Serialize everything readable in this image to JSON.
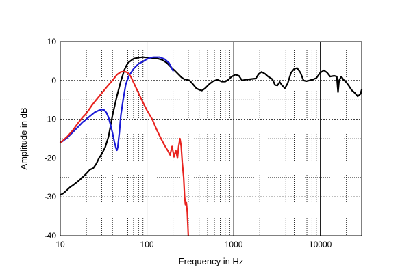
{
  "chart_data": {
    "type": "line",
    "title": "",
    "xlabel": "Frequency in Hz",
    "ylabel": "Amplitude in dB",
    "xscale": "log",
    "xlim": [
      10,
      30000
    ],
    "ylim": [
      -40,
      10
    ],
    "x_tick_labels": [
      "10",
      "100",
      "1000",
      "10000"
    ],
    "y_tick_labels": [
      "10",
      "0",
      "-10",
      "-20",
      "-30",
      "-40"
    ],
    "x_ticks": [
      10,
      100,
      1000,
      10000
    ],
    "y_ticks": [
      10,
      0,
      -10,
      -20,
      -30,
      -40
    ],
    "grid": true,
    "legend": "none",
    "series": [
      {
        "color": "#000000",
        "points": [
          [
            10,
            -29.5
          ],
          [
            11,
            -29
          ],
          [
            12,
            -28.2
          ],
          [
            13,
            -27.5
          ],
          [
            14,
            -27
          ],
          [
            16,
            -26
          ],
          [
            18,
            -25
          ],
          [
            20,
            -24
          ],
          [
            22,
            -23
          ],
          [
            24,
            -22.6
          ],
          [
            26,
            -21.5
          ],
          [
            28,
            -20
          ],
          [
            30,
            -19
          ],
          [
            33,
            -17.2
          ],
          [
            36,
            -14.5
          ],
          [
            40,
            -9
          ],
          [
            45,
            -4
          ],
          [
            50,
            -0.2
          ],
          [
            55,
            2.8
          ],
          [
            60,
            4.5
          ],
          [
            70,
            5.6
          ],
          [
            80,
            5.9
          ],
          [
            90,
            6
          ],
          [
            100,
            5.9
          ],
          [
            115,
            5.8
          ],
          [
            130,
            5.7
          ],
          [
            150,
            5.3
          ],
          [
            170,
            4.5
          ],
          [
            190,
            3.4
          ],
          [
            210,
            2.5
          ],
          [
            230,
            1.6
          ],
          [
            250,
            0.8
          ],
          [
            270,
            0.3
          ],
          [
            290,
            0.2
          ],
          [
            310,
            0
          ],
          [
            340,
            -1
          ],
          [
            370,
            -2
          ],
          [
            400,
            -2.4
          ],
          [
            430,
            -2.6
          ],
          [
            470,
            -2
          ],
          [
            520,
            -1
          ],
          [
            580,
            -0.2
          ],
          [
            650,
            0.2
          ],
          [
            730,
            -0.3
          ],
          [
            800,
            -0.3
          ],
          [
            870,
            0.2
          ],
          [
            950,
            1
          ],
          [
            1050,
            1.5
          ],
          [
            1150,
            1.2
          ],
          [
            1250,
            0
          ],
          [
            1380,
            0.2
          ],
          [
            1500,
            0.3
          ],
          [
            1650,
            0.4
          ],
          [
            1800,
            0.5
          ],
          [
            1950,
            1.7
          ],
          [
            2100,
            2.2
          ],
          [
            2300,
            1.7
          ],
          [
            2500,
            1
          ],
          [
            2800,
            0.3
          ],
          [
            3000,
            -1.2
          ],
          [
            3200,
            -1.3
          ],
          [
            3400,
            -0.4
          ],
          [
            3600,
            -1.2
          ],
          [
            3900,
            -2
          ],
          [
            4200,
            -0.8
          ],
          [
            4600,
            2
          ],
          [
            5000,
            3
          ],
          [
            5400,
            3.2
          ],
          [
            5900,
            2
          ],
          [
            6400,
            0
          ],
          [
            6900,
            -0.2
          ],
          [
            7500,
            0
          ],
          [
            8300,
            0.3
          ],
          [
            9000,
            0.6
          ],
          [
            10000,
            2
          ],
          [
            11000,
            2.6
          ],
          [
            12000,
            2
          ],
          [
            13000,
            1
          ],
          [
            14500,
            1.2
          ],
          [
            15500,
            1
          ],
          [
            16000,
            -3
          ],
          [
            16500,
            0
          ],
          [
            17500,
            1
          ],
          [
            18500,
            0.2
          ],
          [
            20000,
            -0.5
          ],
          [
            21500,
            -1.5
          ],
          [
            23000,
            -2.5
          ],
          [
            25000,
            -3.2
          ],
          [
            27000,
            -4.1
          ],
          [
            29000,
            -3.5
          ],
          [
            30000,
            -2.4
          ]
        ]
      },
      {
        "color": "#1a1ad6",
        "points": [
          [
            10,
            -16.1
          ],
          [
            12,
            -14.8
          ],
          [
            14,
            -13.3
          ],
          [
            16,
            -12
          ],
          [
            18,
            -10.8
          ],
          [
            20,
            -10
          ],
          [
            22,
            -9.2
          ],
          [
            25,
            -8.2
          ],
          [
            28,
            -7.7
          ],
          [
            30,
            -7.5
          ],
          [
            32,
            -7.6
          ],
          [
            34,
            -8.3
          ],
          [
            36,
            -9.5
          ],
          [
            38,
            -11.5
          ],
          [
            40,
            -13.5
          ],
          [
            42,
            -15.8
          ],
          [
            44,
            -17.5
          ],
          [
            45,
            -18
          ],
          [
            46,
            -17.2
          ],
          [
            48,
            -13.5
          ],
          [
            50,
            -9
          ],
          [
            53,
            -5
          ],
          [
            57,
            -1
          ],
          [
            62,
            1.2
          ],
          [
            70,
            3
          ],
          [
            80,
            4.3
          ],
          [
            90,
            4.9
          ],
          [
            100,
            5.5
          ],
          [
            110,
            5.9
          ],
          [
            120,
            6
          ],
          [
            130,
            6
          ],
          [
            140,
            6
          ],
          [
            160,
            5.5
          ],
          [
            180,
            4.5
          ],
          [
            200,
            2.5
          ]
        ]
      },
      {
        "color": "#e8231f",
        "points": [
          [
            10,
            -16.1
          ],
          [
            12,
            -14.5
          ],
          [
            14,
            -12.8
          ],
          [
            16,
            -11
          ],
          [
            18,
            -9.6
          ],
          [
            20,
            -8.5
          ],
          [
            23,
            -6.5
          ],
          [
            26,
            -5
          ],
          [
            30,
            -3.3
          ],
          [
            35,
            -1.5
          ],
          [
            40,
            0
          ],
          [
            45,
            1.5
          ],
          [
            50,
            2.2
          ],
          [
            55,
            2.3
          ],
          [
            60,
            2
          ],
          [
            65,
            1
          ],
          [
            70,
            -0.5
          ],
          [
            80,
            -3.3
          ],
          [
            90,
            -5.7
          ],
          [
            100,
            -7.7
          ],
          [
            115,
            -10
          ],
          [
            130,
            -12.8
          ],
          [
            145,
            -15
          ],
          [
            160,
            -16.8
          ],
          [
            175,
            -18.2
          ],
          [
            185,
            -19.2
          ],
          [
            195,
            -17
          ],
          [
            205,
            -19.7
          ],
          [
            215,
            -18
          ],
          [
            225,
            -20
          ],
          [
            232,
            -17
          ],
          [
            240,
            -15
          ],
          [
            248,
            -17
          ],
          [
            255,
            -21
          ],
          [
            265,
            -25
          ],
          [
            272,
            -30
          ],
          [
            278,
            -32
          ],
          [
            285,
            -31.5
          ],
          [
            292,
            -34
          ],
          [
            300,
            -40
          ]
        ]
      }
    ]
  }
}
